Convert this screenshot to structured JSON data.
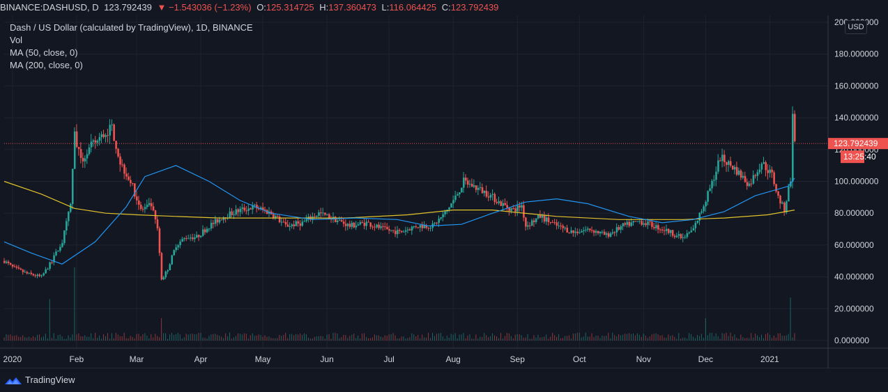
{
  "header": {
    "symbol": "BINANCE:DASHUSD, D",
    "last": "123.792439",
    "change_arrow": "▼",
    "change": "−1.543036 (−1.23%)",
    "o_label": "O:",
    "o_value": "125.314725",
    "h_label": "H:",
    "h_value": "137.360473",
    "l_label": "L:",
    "l_value": "116.064425",
    "c_label": "C:",
    "c_value": "123.792439"
  },
  "legend": {
    "title": "Dash / US Dollar (calculated by TradingView), 1D, BINANCE",
    "vol": "Vol",
    "ma50": "MA (50, close, 0)",
    "ma200": "MA (200, close, 0)"
  },
  "price_axis": {
    "currency_badge": "USD",
    "ticks": [
      "200.000000",
      "180.000000",
      "160.000000",
      "140.000000",
      "120.000000",
      "100.000000",
      "80.000000",
      "60.000000",
      "40.000000",
      "20.000000",
      "0.000000"
    ],
    "last_price_label": "123.792439",
    "countdown_label": "13:25:40"
  },
  "branding": {
    "logo_text": "TradingView"
  },
  "colors": {
    "background": "#131722",
    "up": "#26a69a",
    "down": "#ef5350",
    "ma50": "#2196f3",
    "ma200": "#e3c32b",
    "grid": "#1f2330"
  },
  "chart_data": {
    "type": "candlestick",
    "title": "Dash / US Dollar (calculated by TradingView), 1D, BINANCE",
    "x_ticks": [
      "2020",
      "Feb",
      "Mar",
      "Apr",
      "May",
      "Jun",
      "Jul",
      "Aug",
      "Sep",
      "Oct",
      "Nov",
      "Dec",
      "2021"
    ],
    "ylim": [
      0,
      200
    ],
    "grid": true,
    "series": [
      {
        "name": "MA (50, close, 0)",
        "x": [
          "2019-12-28",
          "2020-01-10",
          "2020-01-25",
          "2020-02-10",
          "2020-02-25",
          "2020-03-05",
          "2020-03-20",
          "2020-04-05",
          "2020-04-20",
          "2020-05-05",
          "2020-05-25",
          "2020-06-15",
          "2020-07-05",
          "2020-07-20",
          "2020-08-05",
          "2020-08-20",
          "2020-09-05",
          "2020-09-20",
          "2020-10-05",
          "2020-10-25",
          "2020-11-10",
          "2020-11-25",
          "2020-12-10",
          "2020-12-25",
          "2021-01-10",
          "2021-01-13"
        ],
        "values": [
          62,
          55,
          48,
          62,
          84,
          103,
          110,
          100,
          88,
          80,
          76,
          77,
          76,
          72,
          73,
          80,
          87,
          89,
          86,
          78,
          74,
          76,
          81,
          91,
          97,
          102
        ]
      },
      {
        "name": "MA (200, close, 0)",
        "x": [
          "2019-12-28",
          "2020-01-15",
          "2020-01-31",
          "2020-02-15",
          "2020-03-01",
          "2020-03-20",
          "2020-04-10",
          "2020-05-10",
          "2020-06-10",
          "2020-07-10",
          "2020-08-01",
          "2020-08-20",
          "2020-09-20",
          "2020-10-20",
          "2020-11-20",
          "2020-12-10",
          "2020-12-31",
          "2021-01-13"
        ],
        "values": [
          100,
          92,
          83,
          80,
          79,
          78,
          77,
          77,
          77,
          79,
          82,
          82,
          78,
          76,
          76,
          77,
          79,
          82
        ]
      },
      {
        "name": "Vol",
        "type": "bar",
        "peaks": [
          {
            "x": "2020-01-19",
            "value": 26
          },
          {
            "x": "2020-01-31",
            "value": 46
          },
          {
            "x": "2020-03-13",
            "value": 14
          },
          {
            "x": "2020-12-01",
            "value": 14
          },
          {
            "x": "2021-01-11",
            "value": 27
          }
        ]
      }
    ],
    "last_price": 123.792439,
    "ohlc_last": {
      "open": 125.314725,
      "high": 137.360473,
      "low": 116.064425,
      "close": 123.792439
    },
    "close_path": {
      "x": [
        "2019-12-28",
        "2020-01-01",
        "2020-01-08",
        "2020-01-15",
        "2020-01-20",
        "2020-01-25",
        "2020-01-29",
        "2020-01-31",
        "2020-02-03",
        "2020-02-08",
        "2020-02-13",
        "2020-02-18",
        "2020-02-22",
        "2020-02-27",
        "2020-03-03",
        "2020-03-08",
        "2020-03-11",
        "2020-03-13",
        "2020-03-16",
        "2020-03-20",
        "2020-03-25",
        "2020-03-30",
        "2020-04-05",
        "2020-04-12",
        "2020-04-20",
        "2020-04-27",
        "2020-05-05",
        "2020-05-12",
        "2020-05-20",
        "2020-05-28",
        "2020-06-05",
        "2020-06-12",
        "2020-06-20",
        "2020-06-28",
        "2020-07-06",
        "2020-07-14",
        "2020-07-22",
        "2020-07-28",
        "2020-08-02",
        "2020-08-06",
        "2020-08-12",
        "2020-08-18",
        "2020-08-24",
        "2020-08-30",
        "2020-09-03",
        "2020-09-05",
        "2020-09-12",
        "2020-09-20",
        "2020-09-28",
        "2020-10-06",
        "2020-10-14",
        "2020-10-22",
        "2020-10-30",
        "2020-11-06",
        "2020-11-14",
        "2020-11-20",
        "2020-11-25",
        "2020-11-29",
        "2020-12-03",
        "2020-12-08",
        "2020-12-15",
        "2020-12-22",
        "2020-12-28",
        "2021-01-02",
        "2021-01-05",
        "2021-01-08",
        "2021-01-11",
        "2021-01-12",
        "2021-01-13"
      ],
      "values": [
        50,
        46,
        42,
        40,
        50,
        62,
        85,
        130,
        112,
        122,
        128,
        134,
        112,
        100,
        82,
        85,
        70,
        38,
        45,
        60,
        65,
        65,
        72,
        78,
        82,
        84,
        80,
        72,
        74,
        80,
        76,
        72,
        74,
        70,
        68,
        72,
        72,
        80,
        90,
        100,
        96,
        92,
        86,
        82,
        85,
        72,
        78,
        72,
        68,
        70,
        66,
        72,
        75,
        72,
        68,
        64,
        70,
        82,
        95,
        115,
        108,
        98,
        112,
        104,
        90,
        82,
        102,
        146,
        124
      ]
    }
  }
}
